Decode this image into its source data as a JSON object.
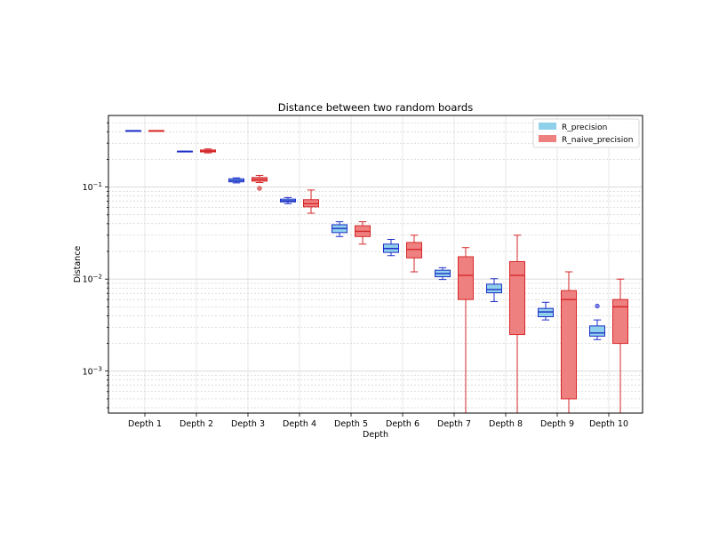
{
  "chart_data": {
    "type": "boxplot",
    "title": "Distance between two random boards",
    "xlabel": "Depth",
    "ylabel": "Distance",
    "yscale": "log",
    "ylim": [
      0.00035,
      0.6
    ],
    "ytick_labels": [
      {
        "value": 0.1,
        "base": "10",
        "exp": "−1"
      },
      {
        "value": 0.01,
        "base": "10",
        "exp": "−2"
      },
      {
        "value": 0.001,
        "base": "10",
        "exp": "−3"
      }
    ],
    "grid": true,
    "legend_position": "top-right",
    "categories": [
      "Depth 1",
      "Depth 2",
      "Depth 3",
      "Depth 4",
      "Depth 5",
      "Depth 6",
      "Depth 7",
      "Depth 8",
      "Depth 9",
      "Depth 10"
    ],
    "series": [
      {
        "name": "R_precision",
        "face_color": "#8fd0ea",
        "edge_color": "#1f2fc8",
        "boxes": [
          {
            "whislo": 0.41,
            "q1": 0.41,
            "med": 0.41,
            "q3": 0.41,
            "whishi": 0.41,
            "fliers": []
          },
          {
            "whislo": 0.245,
            "q1": 0.245,
            "med": 0.245,
            "q3": 0.245,
            "whishi": 0.245,
            "fliers": []
          },
          {
            "whislo": 0.111,
            "q1": 0.114,
            "med": 0.118,
            "q3": 0.123,
            "whishi": 0.126,
            "fliers": []
          },
          {
            "whislo": 0.066,
            "q1": 0.069,
            "med": 0.071,
            "q3": 0.074,
            "whishi": 0.077,
            "fliers": []
          },
          {
            "whislo": 0.029,
            "q1": 0.032,
            "med": 0.0355,
            "q3": 0.039,
            "whishi": 0.042,
            "fliers": []
          },
          {
            "whislo": 0.018,
            "q1": 0.0195,
            "med": 0.0215,
            "q3": 0.024,
            "whishi": 0.027,
            "fliers": []
          },
          {
            "whislo": 0.0099,
            "q1": 0.0106,
            "med": 0.0115,
            "q3": 0.0125,
            "whishi": 0.0133,
            "fliers": []
          },
          {
            "whislo": 0.0057,
            "q1": 0.0071,
            "med": 0.0077,
            "q3": 0.0088,
            "whishi": 0.0101,
            "fliers": []
          },
          {
            "whislo": 0.0036,
            "q1": 0.0039,
            "med": 0.0044,
            "q3": 0.0048,
            "whishi": 0.0056,
            "fliers": []
          },
          {
            "whislo": 0.0022,
            "q1": 0.0024,
            "med": 0.0026,
            "q3": 0.0031,
            "whishi": 0.0036,
            "fliers": [
              0.0051
            ]
          }
        ]
      },
      {
        "name": "R_naive_precision",
        "face_color": "#ef8080",
        "edge_color": "#d62728",
        "boxes": [
          {
            "whislo": 0.41,
            "q1": 0.41,
            "med": 0.41,
            "q3": 0.41,
            "whishi": 0.41,
            "fliers": []
          },
          {
            "whislo": 0.235,
            "q1": 0.241,
            "med": 0.247,
            "q3": 0.253,
            "whishi": 0.26,
            "fliers": []
          },
          {
            "whislo": 0.112,
            "q1": 0.116,
            "med": 0.121,
            "q3": 0.127,
            "whishi": 0.134,
            "fliers": [
              0.097
            ]
          },
          {
            "whislo": 0.052,
            "q1": 0.061,
            "med": 0.066,
            "q3": 0.073,
            "whishi": 0.093,
            "fliers": []
          },
          {
            "whislo": 0.024,
            "q1": 0.029,
            "med": 0.033,
            "q3": 0.038,
            "whishi": 0.042,
            "fliers": []
          },
          {
            "whislo": 0.012,
            "q1": 0.017,
            "med": 0.021,
            "q3": 0.025,
            "whishi": 0.03,
            "fliers": []
          },
          {
            "whislo": 0.0003,
            "q1": 0.006,
            "med": 0.011,
            "q3": 0.0175,
            "whishi": 0.022,
            "fliers": []
          },
          {
            "whislo": 0.0003,
            "q1": 0.0025,
            "med": 0.011,
            "q3": 0.0155,
            "whishi": 0.03,
            "fliers": []
          },
          {
            "whislo": 0.0003,
            "q1": 0.0005,
            "med": 0.006,
            "q3": 0.0075,
            "whishi": 0.012,
            "fliers": []
          },
          {
            "whislo": 0.0003,
            "q1": 0.002,
            "med": 0.005,
            "q3": 0.006,
            "whishi": 0.01,
            "fliers": []
          }
        ]
      }
    ]
  }
}
